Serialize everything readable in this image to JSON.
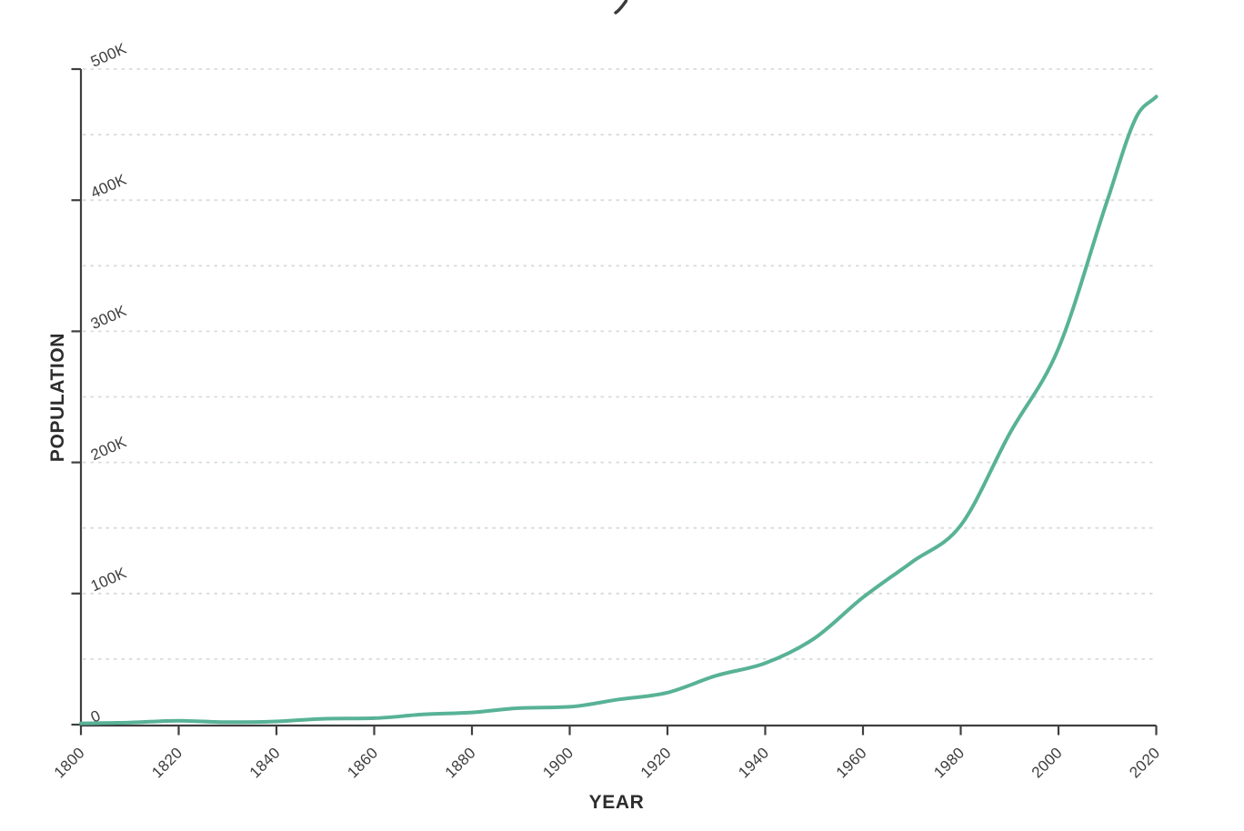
{
  "window": {
    "background": "#ffffff",
    "note": "chart title is clipped at the top edge of the screenshot; only the descender stroke of one letter is visible"
  },
  "chart_data": {
    "type": "line",
    "title": "",
    "xlabel": "YEAR",
    "ylabel": "POPULATION",
    "x": [
      1800,
      1810,
      1820,
      1830,
      1840,
      1850,
      1860,
      1870,
      1880,
      1890,
      1900,
      1910,
      1920,
      1930,
      1940,
      1950,
      1960,
      1970,
      1980,
      1990,
      2000,
      2010,
      2016,
      2020
    ],
    "series": [
      {
        "name": "Population",
        "color": "#58b296",
        "values": [
          1000,
          1600,
          3000,
          1900,
          2400,
          4500,
          4900,
          7800,
          9300,
          12700,
          13600,
          19200,
          24400,
          37400,
          46900,
          65700,
          97000,
          124000,
          152000,
          222000,
          287000,
          400000,
          464000,
          479000
        ]
      }
    ],
    "xlim": [
      1800,
      2020
    ],
    "ylim": [
      0,
      500000
    ],
    "x_ticks": {
      "values": [
        1800,
        1820,
        1840,
        1860,
        1880,
        1900,
        1920,
        1940,
        1960,
        1980,
        2000,
        2020
      ],
      "labels": [
        "1800",
        "1820",
        "1840",
        "1860",
        "1880",
        "1900",
        "1920",
        "1940",
        "1960",
        "1980",
        "2000",
        "2020"
      ],
      "rotation_deg": -45
    },
    "y_ticks": {
      "values": [
        0,
        100000,
        200000,
        300000,
        400000,
        500000
      ],
      "labels": [
        "0",
        "100K",
        "200K",
        "300K",
        "400K",
        "500K"
      ],
      "rotation_deg": -24
    },
    "grid": {
      "orientation": "horizontal",
      "every": 50000,
      "style": "dashed",
      "color": "#d8dcdc"
    },
    "legend": "none"
  },
  "style_colors": {
    "axis": "#3f3f3f",
    "tick_label": "#3d3d3d",
    "axis_title": "#2d2d2d",
    "line": "#58b296",
    "grid": "#d8dcdc",
    "title_fragment": "#3a3a3a",
    "background": "#ffffff"
  }
}
